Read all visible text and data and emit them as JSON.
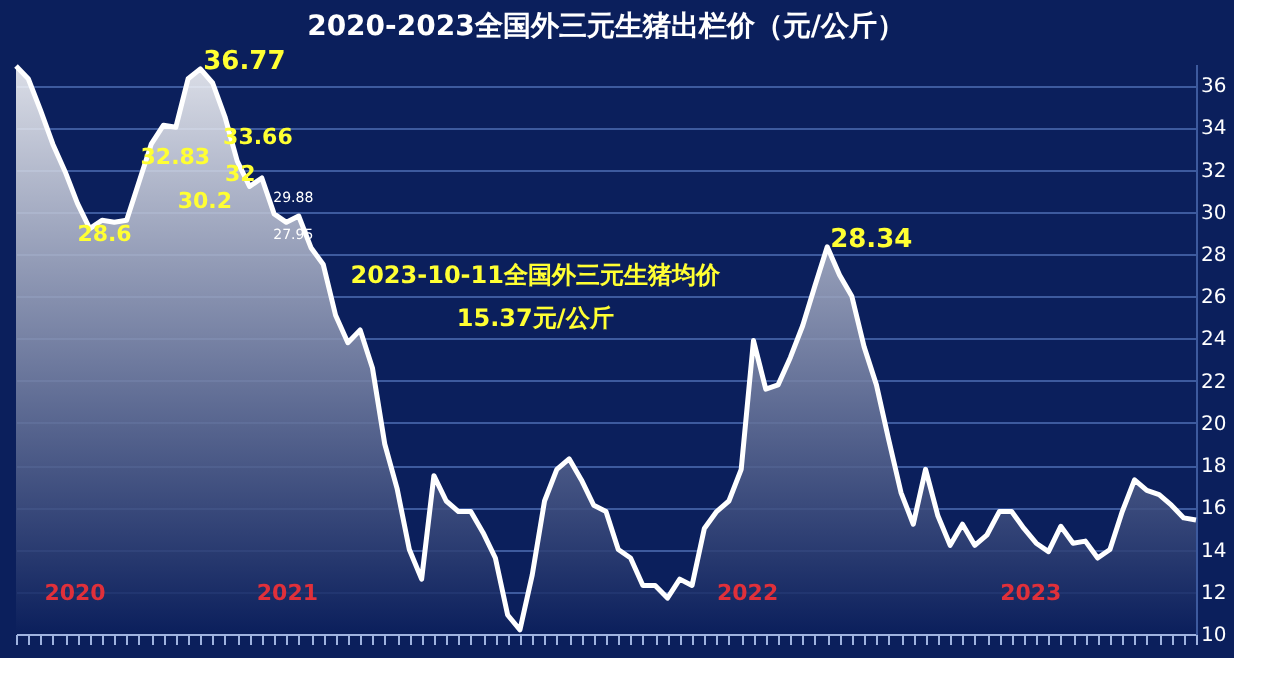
{
  "chart_data": {
    "type": "area",
    "title": "2020-2023全国外三元生猪出栏价（元/公斤）",
    "categories": [
      null,
      null,
      null,
      null,
      null,
      null,
      null,
      null,
      null,
      null,
      null,
      null,
      null,
      null,
      null,
      null,
      null,
      null,
      null,
      null,
      null,
      null,
      null,
      null,
      null,
      null,
      null,
      null,
      null,
      null,
      null,
      null,
      null,
      null,
      null,
      null,
      null,
      null,
      null,
      null,
      null,
      null,
      null,
      null,
      null,
      null,
      null,
      null,
      null,
      null,
      null,
      null,
      null,
      null,
      null,
      null,
      null,
      null,
      null,
      null,
      null,
      null,
      null,
      null,
      null,
      null,
      null,
      null,
      null,
      null,
      null,
      null,
      null,
      null,
      null,
      null,
      null,
      null,
      null,
      null,
      null,
      null,
      null,
      null,
      null,
      null,
      null,
      null,
      null,
      null,
      null,
      null,
      null,
      null,
      null,
      null,
      null
    ],
    "series": [
      {
        "color": "#ffffff",
        "values": [
          36.9,
          36.3,
          34.8,
          33.2,
          31.9,
          30.4,
          29.2,
          29.6,
          29.5,
          29.6,
          31.4,
          33.2,
          34.1,
          34.0,
          36.3,
          36.77,
          36.1,
          34.5,
          32.4,
          31.2,
          31.6,
          29.9,
          29.5,
          29.8,
          28.3,
          27.5,
          25.1,
          23.8,
          24.4,
          22.6,
          19.0,
          16.9,
          14.0,
          12.6,
          17.5,
          16.3,
          15.8,
          15.8,
          14.8,
          13.6,
          10.9,
          10.2,
          12.8,
          16.3,
          17.8,
          18.3,
          17.3,
          16.1,
          15.8,
          14.0,
          13.6,
          12.3,
          12.3,
          11.7,
          12.6,
          12.3,
          15.0,
          15.8,
          16.3,
          17.8,
          23.9,
          21.6,
          21.8,
          23.1,
          24.6,
          26.5,
          28.34,
          27.0,
          26.0,
          23.6,
          21.8,
          19.2,
          16.7,
          15.2,
          17.8,
          15.6,
          14.2,
          15.2,
          14.2,
          14.7,
          15.8,
          15.8,
          15.0,
          14.3,
          13.9,
          15.1,
          14.3,
          14.4,
          13.6,
          14.0,
          15.8,
          17.3,
          16.8,
          16.6,
          16.1,
          15.5,
          15.4
        ],
        "value_labels": [
          null,
          null,
          null,
          null,
          null,
          null,
          null,
          null,
          null,
          null,
          null,
          null,
          null,
          null,
          null,
          "36.77",
          null,
          null,
          null,
          null,
          null,
          null,
          null,
          null,
          null,
          null,
          null,
          null,
          null,
          null,
          null,
          null,
          null,
          null,
          null,
          null,
          null,
          null,
          null,
          null,
          null,
          null,
          null,
          null,
          null,
          null,
          null,
          null,
          null,
          null,
          null,
          null,
          null,
          null,
          null,
          null,
          null,
          null,
          null,
          null,
          null,
          null,
          null,
          null,
          null,
          null,
          "28.34",
          null,
          null,
          null,
          null,
          null,
          null,
          null,
          null,
          null,
          null,
          null,
          null,
          null,
          null,
          null,
          null,
          null,
          null,
          null,
          null,
          null,
          null,
          null,
          null,
          null,
          null,
          null,
          null,
          null,
          null
        ]
      }
    ],
    "annotations": [
      "28.6",
      "32.83",
      "33.66",
      "32",
      "30.2",
      "29.88",
      "27.95",
      "2023-10-11全国外三元生猪均价",
      "15.37元/公斤",
      "2020",
      "2021",
      "2022",
      "2023"
    ],
    "ylim": [
      10,
      37
    ],
    "yticks": [
      10,
      12,
      14,
      16,
      18,
      20,
      22,
      24,
      26,
      28,
      30,
      32,
      34,
      36
    ],
    "grid": "y",
    "tick_labels": "y"
  }
}
